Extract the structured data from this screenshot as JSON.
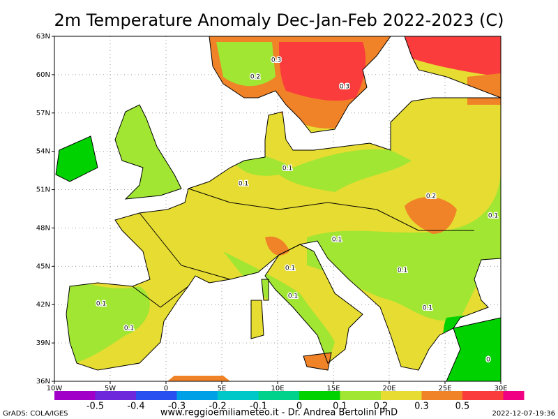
{
  "title": "2m Temperature Anomaly Dec-Jan-Feb 2022-2023 (C)",
  "map": {
    "lat_labels": [
      "36N",
      "39N",
      "42N",
      "45N",
      "48N",
      "51N",
      "54N",
      "57N",
      "60N",
      "63N"
    ],
    "lon_labels": [
      "10W",
      "5W",
      "0",
      "5E",
      "10E",
      "15E",
      "20E",
      "25E",
      "30E"
    ],
    "contour_labels": [
      "0.3",
      "0.2",
      "0.3",
      "0.1",
      "0.1",
      "0.2",
      "0.1",
      "0.1",
      "0.1",
      "0.1",
      "0.1",
      "0.1",
      "0.1",
      "0.1",
      "0"
    ]
  },
  "colorbar": {
    "levels": [
      -0.5,
      -0.4,
      -0.3,
      -0.2,
      -0.1,
      0,
      0.1,
      0.2,
      0.3,
      0.5
    ],
    "colors": [
      "#a000c8",
      "#6e28dc",
      "#2850f0",
      "#00a0e6",
      "#00c8c8",
      "#00d28c",
      "#00d200",
      "#a0e632",
      "#e6dc32",
      "#f08228",
      "#fa3c3c",
      "#f00082"
    ]
  },
  "footer": {
    "left": "GrADS: COLA/IGES",
    "center": "www.reggioemiliameteo.it - Dr. Andrea Bertolini PhD",
    "right": "2022-12-07-19:36"
  }
}
